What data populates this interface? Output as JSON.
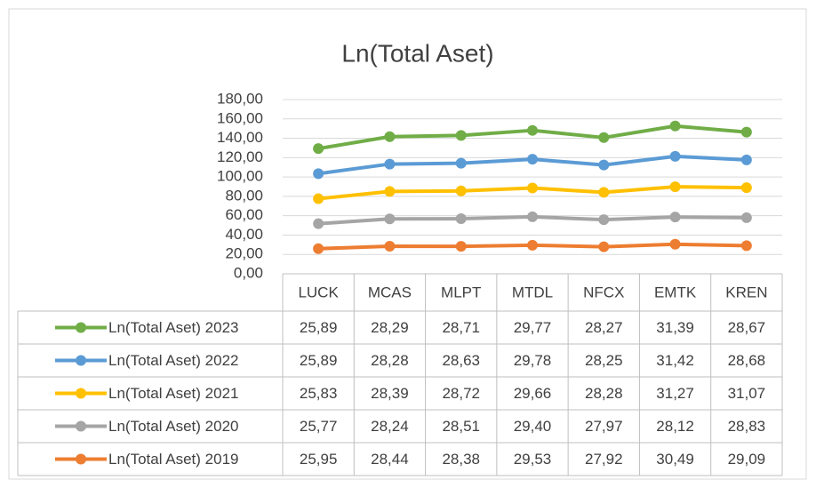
{
  "chart_data": {
    "type": "stacked_line",
    "title": "Ln(Total Aset)",
    "categories": [
      "LUCK",
      "MCAS",
      "MLPT",
      "MTDL",
      "NFCX",
      "EMTK",
      "KREN"
    ],
    "series": [
      {
        "name": "Ln(Total Aset) 2023",
        "color": "#70ad47",
        "values": [
          25.89,
          28.29,
          28.71,
          29.77,
          28.27,
          31.39,
          28.67
        ],
        "value_labels": [
          "25,89",
          "28,29",
          "28,71",
          "29,77",
          "28,27",
          "31,39",
          "28,67"
        ]
      },
      {
        "name": "Ln(Total Aset) 2022",
        "color": "#5b9bd5",
        "values": [
          25.89,
          28.28,
          28.63,
          29.78,
          28.25,
          31.42,
          28.68
        ],
        "value_labels": [
          "25,89",
          "28,28",
          "28,63",
          "29,78",
          "28,25",
          "31,42",
          "28,68"
        ]
      },
      {
        "name": "Ln(Total Aset) 2021",
        "color": "#ffc000",
        "values": [
          25.83,
          28.39,
          28.72,
          29.66,
          28.28,
          31.27,
          31.07
        ],
        "value_labels": [
          "25,83",
          "28,39",
          "28,72",
          "29,66",
          "28,28",
          "31,27",
          "31,07"
        ]
      },
      {
        "name": "Ln(Total Aset) 2020",
        "color": "#a5a5a5",
        "values": [
          25.77,
          28.24,
          28.51,
          29.4,
          27.97,
          28.12,
          28.83
        ],
        "value_labels": [
          "25,77",
          "28,24",
          "28,51",
          "29,40",
          "27,97",
          "28,12",
          "28,83"
        ]
      },
      {
        "name": "Ln(Total Aset) 2019",
        "color": "#ed7d31",
        "values": [
          25.95,
          28.44,
          28.38,
          29.53,
          27.92,
          30.49,
          29.09
        ],
        "value_labels": [
          "25,95",
          "28,44",
          "28,38",
          "29,53",
          "27,92",
          "30,49",
          "29,09"
        ]
      }
    ],
    "ylim": [
      0,
      180
    ],
    "yticks": [
      {
        "value": 0,
        "label": "0,00"
      },
      {
        "value": 20,
        "label": "20,00"
      },
      {
        "value": 40,
        "label": "40,00"
      },
      {
        "value": 60,
        "label": "60,00"
      },
      {
        "value": 80,
        "label": "80,00"
      },
      {
        "value": 100,
        "label": "100,00"
      },
      {
        "value": 120,
        "label": "120,00"
      },
      {
        "value": 140,
        "label": "140,00"
      },
      {
        "value": 160,
        "label": "160,00"
      },
      {
        "value": 180,
        "label": "180,00"
      }
    ],
    "grid": true
  }
}
